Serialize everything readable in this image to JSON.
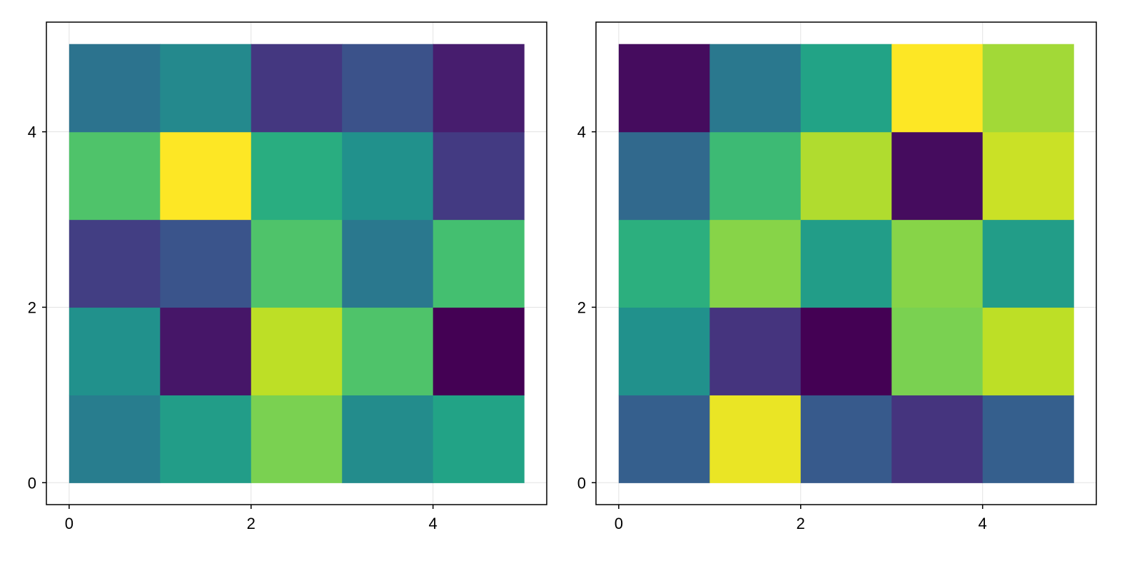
{
  "chart_data": [
    {
      "type": "heatmap",
      "title": "",
      "xlabel": "",
      "ylabel": "",
      "x_edges": [
        0,
        1,
        2,
        3,
        4,
        5
      ],
      "y_edges": [
        0,
        1,
        2,
        3,
        4,
        5
      ],
      "xlim": [
        -0.25,
        5.25
      ],
      "ylim": [
        -0.25,
        5.25
      ],
      "xticks": [
        0,
        2,
        4
      ],
      "yticks": [
        0,
        2,
        4
      ],
      "grid": true,
      "colormap": "viridis",
      "colorbar": false,
      "values_normalized": [
        [
          0.42,
          0.55,
          0.8,
          0.48,
          0.58
        ],
        [
          0.5,
          0.06,
          0.9,
          0.72,
          0.0
        ],
        [
          0.18,
          0.26,
          0.72,
          0.4,
          0.7
        ],
        [
          0.72,
          1.0,
          0.62,
          0.5,
          0.17
        ],
        [
          0.38,
          0.47,
          0.16,
          0.25,
          0.08
        ]
      ]
    },
    {
      "type": "heatmap",
      "title": "",
      "xlabel": "",
      "ylabel": "",
      "x_edges": [
        0,
        1,
        2,
        3,
        4,
        5
      ],
      "y_edges": [
        0,
        1,
        2,
        3,
        4,
        5
      ],
      "xlim": [
        -0.25,
        5.25
      ],
      "ylim": [
        -0.25,
        5.25
      ],
      "xticks": [
        0,
        2,
        4
      ],
      "yticks": [
        0,
        2,
        4
      ],
      "grid": true,
      "colormap": "viridis",
      "colorbar": false,
      "values_normalized": [
        [
          0.3,
          0.97,
          0.28,
          0.15,
          0.3
        ],
        [
          0.5,
          0.15,
          0.0,
          0.8,
          0.9
        ],
        [
          0.63,
          0.82,
          0.55,
          0.82,
          0.55
        ],
        [
          0.34,
          0.68,
          0.88,
          0.03,
          0.92
        ],
        [
          0.03,
          0.4,
          0.58,
          1.0,
          0.86
        ]
      ]
    }
  ]
}
